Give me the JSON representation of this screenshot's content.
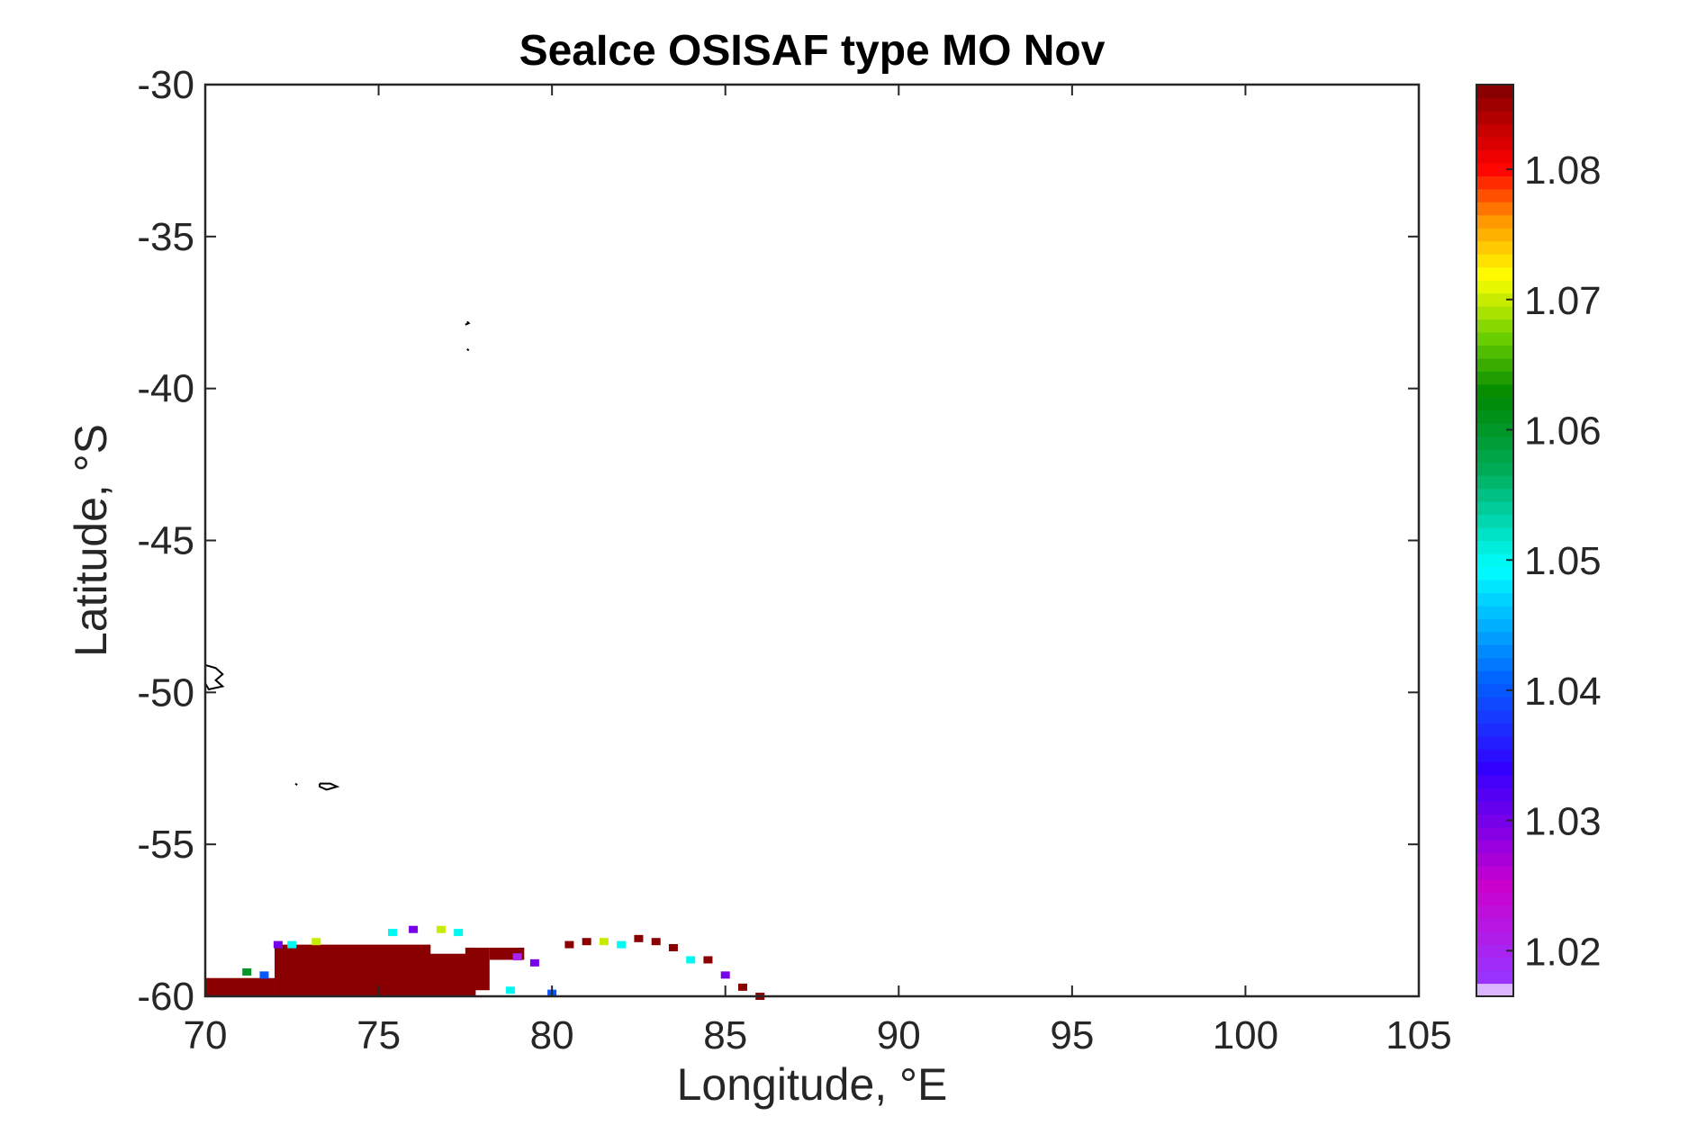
{
  "chart_data": {
    "type": "heatmap",
    "title": "SeaIce OSISAF type MO Nov",
    "xlabel": "Longitude, °E",
    "ylabel": "Latitude, °S",
    "xlim": [
      70,
      105
    ],
    "ylim": [
      -60,
      -30
    ],
    "x_ticks": [
      70,
      75,
      80,
      85,
      90,
      95,
      100,
      105
    ],
    "x_tick_labels": [
      "70",
      "75",
      "80",
      "85",
      "90",
      "95",
      "100",
      "105"
    ],
    "y_ticks": [
      -30,
      -35,
      -40,
      -45,
      -50,
      -55,
      -60
    ],
    "y_tick_labels": [
      "-30",
      "-35",
      "-40",
      "-45",
      "-50",
      "-55",
      "-60"
    ],
    "colorbar": {
      "range": [
        1.0165,
        1.0865
      ],
      "ticks": [
        1.02,
        1.03,
        1.04,
        1.05,
        1.06,
        1.07,
        1.08
      ],
      "tick_labels": [
        "1.02",
        "1.03",
        "1.04",
        "1.05",
        "1.06",
        "1.07",
        "1.08"
      ],
      "colormap_stops": [
        {
          "v": 0.0,
          "color": "#ffffff"
        },
        {
          "v": 0.02,
          "color": "#9933ff"
        },
        {
          "v": 0.12,
          "color": "#cc00cc"
        },
        {
          "v": 0.25,
          "color": "#3300ff"
        },
        {
          "v": 0.35,
          "color": "#0066ff"
        },
        {
          "v": 0.47,
          "color": "#00ffff"
        },
        {
          "v": 0.58,
          "color": "#00aa55"
        },
        {
          "v": 0.66,
          "color": "#008800"
        },
        {
          "v": 0.72,
          "color": "#66cc00"
        },
        {
          "v": 0.79,
          "color": "#ffff00"
        },
        {
          "v": 0.85,
          "color": "#ff9900"
        },
        {
          "v": 0.91,
          "color": "#ff0000"
        },
        {
          "v": 1.0,
          "color": "#800000"
        }
      ]
    },
    "ice_regions": [
      {
        "lon": [
          70.0,
          72.0
        ],
        "lat": [
          -60.0,
          -59.4
        ],
        "value": 1.086
      },
      {
        "lon": [
          72.0,
          76.5
        ],
        "lat": [
          -60.0,
          -58.3
        ],
        "value": 1.086
      },
      {
        "lon": [
          76.0,
          77.8
        ],
        "lat": [
          -60.0,
          -58.6
        ],
        "value": 1.086
      },
      {
        "lon": [
          77.5,
          78.2
        ],
        "lat": [
          -59.8,
          -58.4
        ],
        "value": 1.086
      },
      {
        "lon": [
          78.2,
          79.2
        ],
        "lat": [
          -58.8,
          -58.4
        ],
        "value": 1.086
      }
    ],
    "ice_edge_points": [
      {
        "lon": 72.1,
        "lat": -58.3,
        "value": 1.03
      },
      {
        "lon": 72.5,
        "lat": -58.3,
        "value": 1.05
      },
      {
        "lon": 73.2,
        "lat": -58.2,
        "value": 1.07
      },
      {
        "lon": 75.4,
        "lat": -57.9,
        "value": 1.05
      },
      {
        "lon": 76.0,
        "lat": -57.8,
        "value": 1.03
      },
      {
        "lon": 76.8,
        "lat": -57.8,
        "value": 1.07
      },
      {
        "lon": 77.3,
        "lat": -57.9,
        "value": 1.05
      },
      {
        "lon": 71.7,
        "lat": -59.3,
        "value": 1.04
      },
      {
        "lon": 71.2,
        "lat": -59.2,
        "value": 1.06
      },
      {
        "lon": 79.0,
        "lat": -58.7,
        "value": 1.02
      },
      {
        "lon": 79.5,
        "lat": -58.9,
        "value": 1.03
      },
      {
        "lon": 78.8,
        "lat": -59.8,
        "value": 1.05
      },
      {
        "lon": 80.0,
        "lat": -59.9,
        "value": 1.04
      },
      {
        "lon": 80.5,
        "lat": -58.3,
        "value": 1.086
      },
      {
        "lon": 81.0,
        "lat": -58.2,
        "value": 1.086
      },
      {
        "lon": 81.5,
        "lat": -58.2,
        "value": 1.07
      },
      {
        "lon": 82.0,
        "lat": -58.3,
        "value": 1.05
      },
      {
        "lon": 82.5,
        "lat": -58.1,
        "value": 1.086
      },
      {
        "lon": 83.0,
        "lat": -58.2,
        "value": 1.086
      },
      {
        "lon": 83.5,
        "lat": -58.4,
        "value": 1.086
      },
      {
        "lon": 84.0,
        "lat": -58.8,
        "value": 1.05
      },
      {
        "lon": 84.5,
        "lat": -58.8,
        "value": 1.086
      },
      {
        "lon": 85.0,
        "lat": -59.3,
        "value": 1.03
      },
      {
        "lon": 85.5,
        "lat": -59.7,
        "value": 1.086
      },
      {
        "lon": 86.0,
        "lat": -60.0,
        "value": 1.086
      }
    ],
    "coastlines": [
      {
        "name": "island-north-a",
        "points": [
          [
            77.55,
            -37.8
          ],
          [
            77.6,
            -37.85
          ],
          [
            77.5,
            -37.9
          ]
        ]
      },
      {
        "name": "island-north-b",
        "points": [
          [
            77.55,
            -38.7
          ],
          [
            77.6,
            -38.75
          ]
        ]
      },
      {
        "name": "kerguelen",
        "points": [
          [
            70.0,
            -49.1
          ],
          [
            70.3,
            -49.2
          ],
          [
            70.5,
            -49.4
          ],
          [
            70.3,
            -49.6
          ],
          [
            70.5,
            -49.8
          ],
          [
            70.1,
            -49.9
          ],
          [
            70.0,
            -49.7
          ]
        ]
      },
      {
        "name": "heard-island",
        "points": [
          [
            73.3,
            -53.0
          ],
          [
            73.6,
            -53.0
          ],
          [
            73.8,
            -53.1
          ],
          [
            73.5,
            -53.2
          ],
          [
            73.3,
            -53.1
          ],
          [
            73.3,
            -53.0
          ]
        ]
      },
      {
        "name": "mcdonald-island",
        "points": [
          [
            72.6,
            -53.0
          ],
          [
            72.65,
            -53.05
          ]
        ]
      }
    ]
  }
}
